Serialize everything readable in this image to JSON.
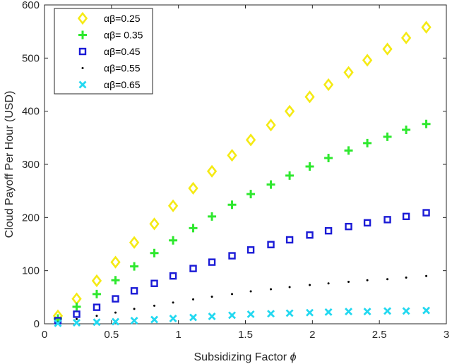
{
  "chart_data": {
    "type": "scatter",
    "title": "",
    "xlabel_text": "Subsidizing Factor",
    "xlabel_symbol": "ϕ",
    "ylabel": "Cloud Payoff Per Hour (USD)",
    "xlim": [
      0,
      3
    ],
    "ylim": [
      0,
      600
    ],
    "xticks": [
      0,
      0.5,
      1,
      1.5,
      2,
      2.5,
      3
    ],
    "xtick_labels": [
      "0",
      "0.5",
      "1",
      "1.5",
      "2",
      "2.5",
      "3"
    ],
    "yticks": [
      0,
      100,
      200,
      300,
      400,
      500,
      600
    ],
    "ytick_labels": [
      "0",
      "100",
      "200",
      "300",
      "400",
      "500",
      "600"
    ],
    "grid": false,
    "legend_position": "top-left",
    "x": [
      0.1,
      0.24,
      0.39,
      0.53,
      0.67,
      0.82,
      0.96,
      1.11,
      1.25,
      1.4,
      1.54,
      1.69,
      1.83,
      1.98,
      2.12,
      2.27,
      2.41,
      2.56,
      2.7,
      2.85
    ],
    "series": [
      {
        "name": "αβ=0.25",
        "marker": "diamond",
        "color": "#f5ea14",
        "values": [
          15,
          47,
          81,
          116,
          153,
          188,
          222,
          255,
          287,
          317,
          346,
          374,
          400,
          427,
          450,
          473,
          496,
          517,
          538,
          558
        ]
      },
      {
        "name": "αβ= 0.35",
        "marker": "plus",
        "color": "#2ee82e",
        "values": [
          10,
          32,
          56,
          82,
          108,
          133,
          157,
          180,
          202,
          224,
          244,
          262,
          279,
          296,
          312,
          326,
          340,
          352,
          365,
          376
        ]
      },
      {
        "name": "αβ=0.45",
        "marker": "square",
        "color": "#1a1ad6",
        "values": [
          6,
          18,
          31,
          47,
          62,
          76,
          90,
          104,
          116,
          128,
          139,
          149,
          158,
          167,
          175,
          183,
          190,
          196,
          202,
          209
        ]
      },
      {
        "name": "αβ=0.55",
        "marker": "point",
        "color": "#000000",
        "values": [
          3,
          9,
          15,
          21,
          28,
          34,
          40,
          46,
          51,
          56,
          61,
          65,
          69,
          73,
          76,
          79,
          82,
          84,
          87,
          90
        ]
      },
      {
        "name": "αβ=0.65",
        "marker": "x",
        "color": "#22d8f0",
        "values": [
          1,
          2,
          3,
          4,
          6,
          8,
          10,
          12,
          14,
          16,
          18,
          19,
          20,
          21,
          22,
          23,
          23,
          24,
          24,
          25
        ]
      }
    ]
  }
}
